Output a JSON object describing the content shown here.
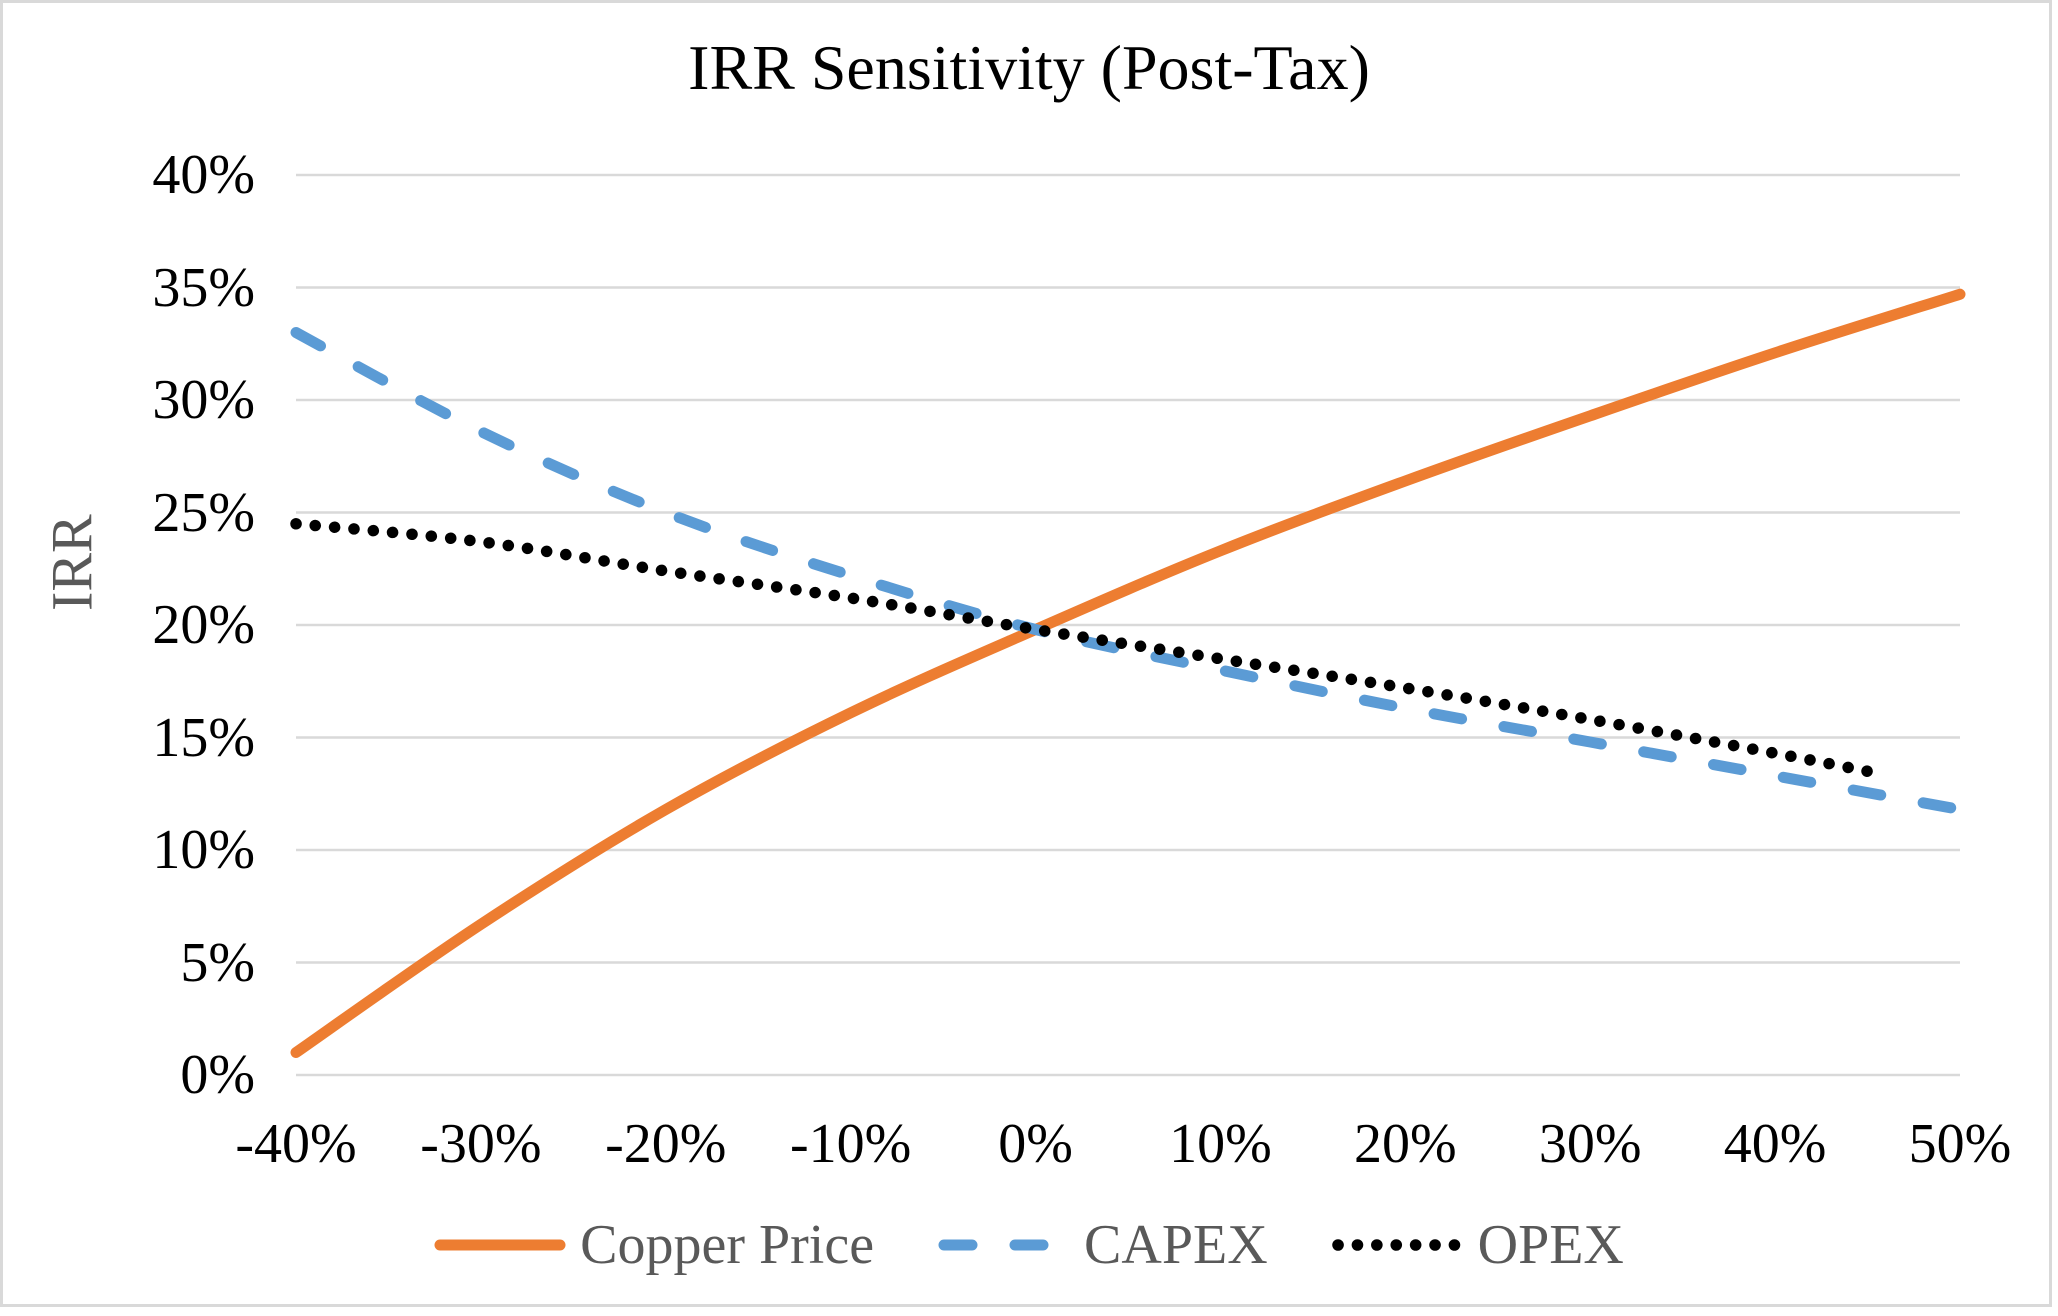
{
  "chart_data": {
    "type": "line",
    "title": "IRR Sensitivity (Post-Tax)",
    "xlabel": "",
    "ylabel": "IRR",
    "xlim": [
      -40,
      50
    ],
    "ylim": [
      0,
      40
    ],
    "grid": "horizontal-only",
    "gridline_color": "#D9D9D9",
    "legend_position": "bottom",
    "text_color": "#000000",
    "muted_text_color": "#595959",
    "x_axis": {
      "tick_values": [
        -40,
        -30,
        -20,
        -10,
        0,
        10,
        20,
        30,
        40,
        50
      ],
      "tick_labels": [
        "-40%",
        "-30%",
        "-20%",
        "-10%",
        "0%",
        "10%",
        "20%",
        "30%",
        "40%",
        "50%"
      ]
    },
    "y_axis": {
      "tick_values": [
        0,
        5,
        10,
        15,
        20,
        25,
        30,
        35,
        40
      ],
      "tick_labels": [
        "0%",
        "5%",
        "10%",
        "15%",
        "20%",
        "25%",
        "30%",
        "35%",
        "40%"
      ]
    },
    "series": [
      {
        "name": "Copper Price",
        "color": "#ED7D31",
        "line_style": "solid",
        "x": [
          -40,
          -30,
          -20,
          -10,
          0,
          10,
          20,
          30,
          40,
          50
        ],
        "y": [
          1.0,
          6.7,
          11.8,
          16.1,
          19.8,
          23.3,
          26.4,
          29.3,
          32.1,
          34.7
        ]
      },
      {
        "name": "CAPEX",
        "color": "#5B9BD5",
        "line_style": "dashed",
        "x": [
          -40,
          -30,
          -20,
          -10,
          0,
          10,
          20,
          30,
          40,
          50
        ],
        "y": [
          33.0,
          28.6,
          25.0,
          22.2,
          19.8,
          18.0,
          16.3,
          14.8,
          13.3,
          11.8
        ]
      },
      {
        "name": "OPEX",
        "color": "#000000",
        "line_style": "dotted",
        "x": [
          -40,
          -30,
          -20,
          -10,
          0,
          10,
          20,
          30,
          40,
          45
        ],
        "y": [
          24.5,
          23.7,
          22.4,
          21.2,
          19.8,
          18.5,
          17.2,
          15.8,
          14.3,
          13.5
        ]
      }
    ]
  }
}
